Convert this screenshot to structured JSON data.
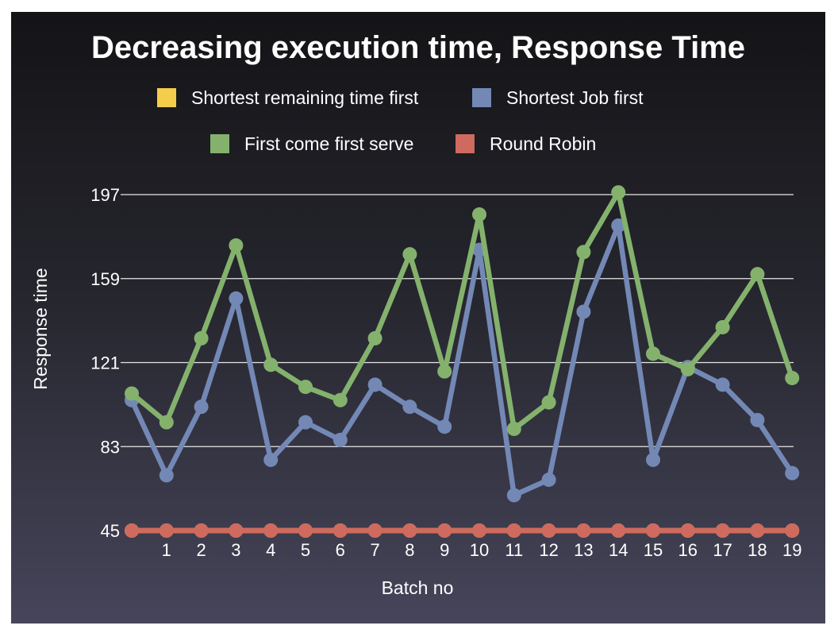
{
  "chart_data": {
    "type": "line",
    "title": "Decreasing execution time, Response Time",
    "xlabel": "Batch no",
    "ylabel": "Response time",
    "x": [
      0,
      1,
      2,
      3,
      4,
      5,
      6,
      7,
      8,
      9,
      10,
      11,
      12,
      13,
      14,
      15,
      16,
      17,
      18,
      19
    ],
    "x_tick_labels": [
      "",
      "1",
      "2",
      "3",
      "4",
      "5",
      "6",
      "7",
      "8",
      "9",
      "10",
      "11",
      "12",
      "13",
      "14",
      "15",
      "16",
      "17",
      "18",
      "19"
    ],
    "y_ticks": [
      45,
      83,
      121,
      159,
      197
    ],
    "ylim": [
      45,
      197
    ],
    "grid": true,
    "legend_position": "top-center",
    "series": [
      {
        "name": "Shortest remaining time first",
        "color": "#f4cd4a",
        "values": [
          45,
          45,
          45,
          45,
          45,
          45,
          45,
          45,
          45,
          45,
          45,
          45,
          45,
          45,
          45,
          45,
          45,
          45,
          45,
          45
        ]
      },
      {
        "name": "Shortest Job first",
        "color": "#7388b5",
        "values": [
          104,
          70,
          101,
          150,
          77,
          94,
          86,
          111,
          101,
          92,
          172,
          61,
          68,
          144,
          183,
          77,
          119,
          111,
          95,
          71
        ]
      },
      {
        "name": "First come first serve",
        "color": "#84b26d",
        "values": [
          107,
          94,
          132,
          174,
          120,
          110,
          104,
          132,
          170,
          117,
          188,
          91,
          103,
          171,
          198,
          125,
          118,
          137,
          161,
          114
        ]
      },
      {
        "name": "Round Robin",
        "color": "#cf6a5e",
        "values": [
          45,
          45,
          45,
          45,
          45,
          45,
          45,
          45,
          45,
          45,
          45,
          45,
          45,
          45,
          45,
          45,
          45,
          45,
          45,
          45
        ]
      }
    ]
  }
}
